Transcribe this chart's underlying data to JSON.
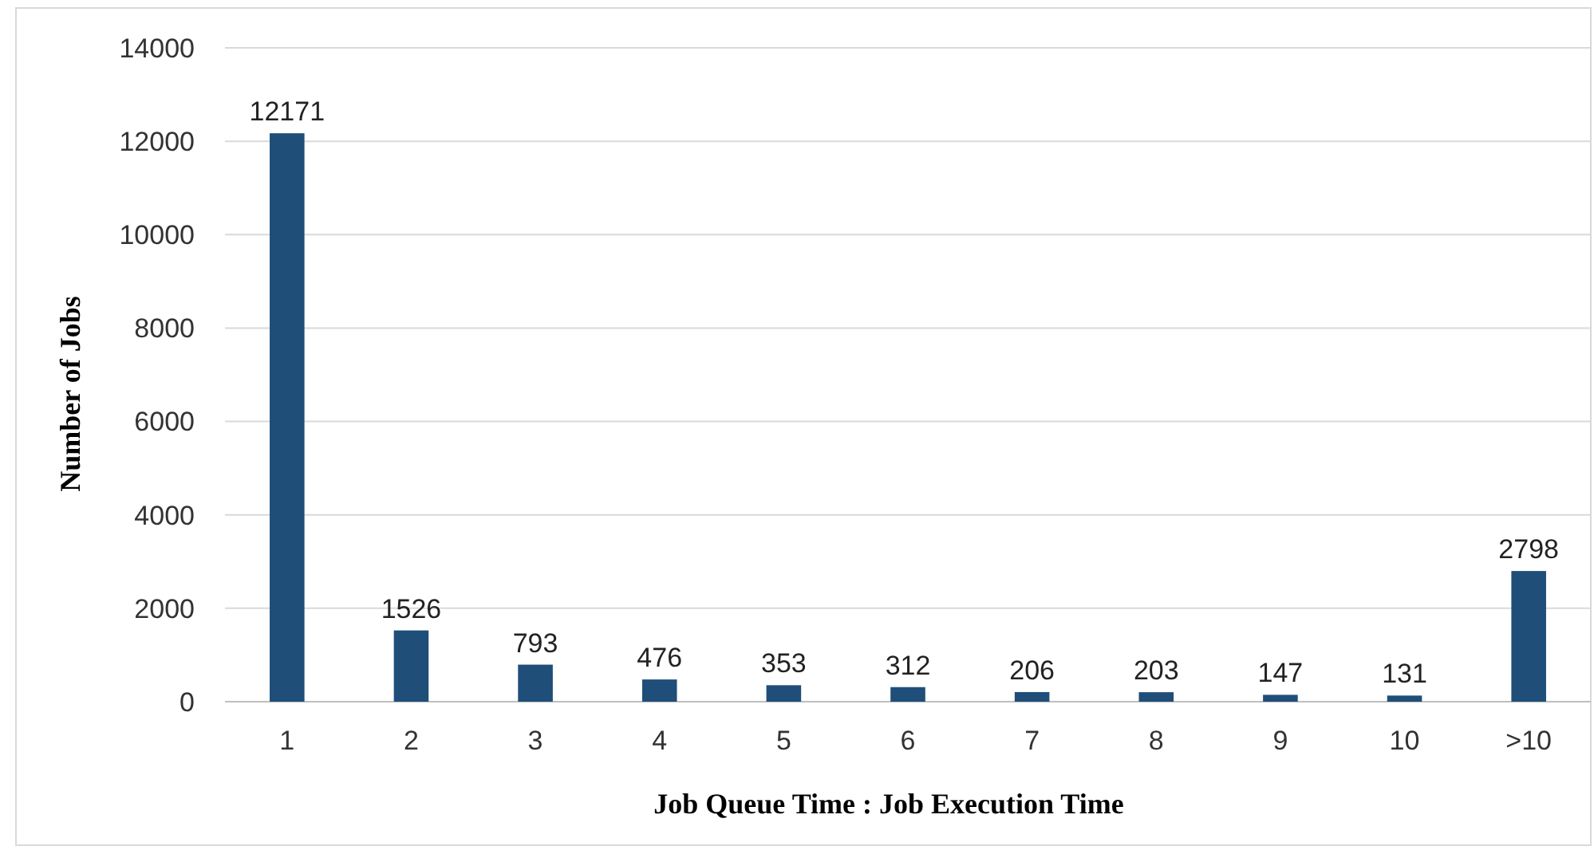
{
  "chart_data": {
    "type": "bar",
    "xlabel": "Job Queue Time : Job Execution Time",
    "ylabel": "Number of Jobs",
    "categories": [
      "1",
      "2",
      "3",
      "4",
      "5",
      "6",
      "7",
      "8",
      "9",
      "10",
      ">10"
    ],
    "values": [
      12171,
      1526,
      793,
      476,
      353,
      312,
      206,
      203,
      147,
      131,
      2798
    ],
    "color": "#1f4e79",
    "ylim": [
      0,
      14000
    ],
    "yticks": [
      0,
      2000,
      4000,
      6000,
      8000,
      10000,
      12000,
      14000
    ],
    "grid": "y",
    "data_labels": true
  }
}
